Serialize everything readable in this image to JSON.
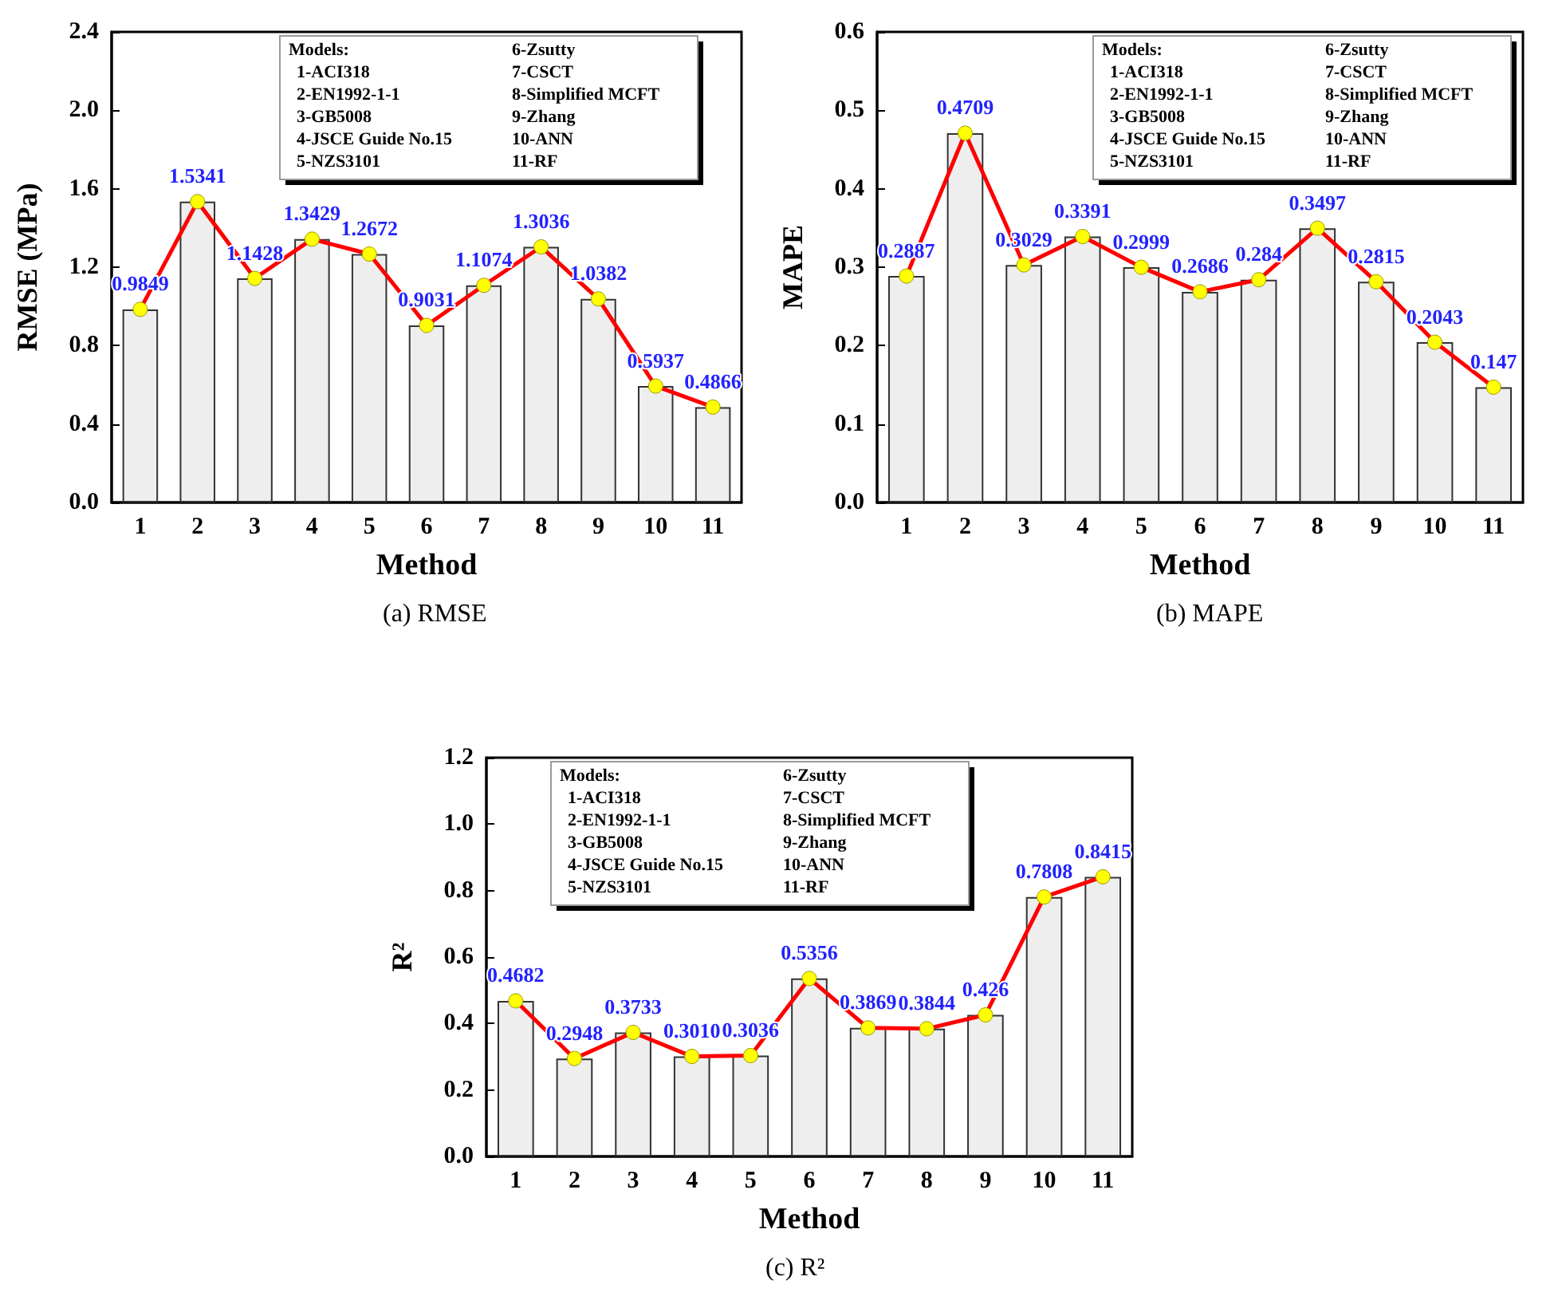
{
  "chart_data": [
    {
      "type": "bar",
      "title": "(a) RMSE",
      "xlabel": "Method",
      "ylabel": "RMSE (MPa)",
      "categories": [
        "1",
        "2",
        "3",
        "4",
        "5",
        "6",
        "7",
        "8",
        "9",
        "10",
        "11"
      ],
      "ylim": [
        0,
        2.4
      ],
      "yticks": [
        {
          "value": 0,
          "label": "0.0"
        },
        {
          "value": 0.4,
          "label": "0.4"
        },
        {
          "value": 0.8,
          "label": "0.8"
        },
        {
          "value": 1.2,
          "label": "1.2"
        },
        {
          "value": 1.6,
          "label": "1.6"
        },
        {
          "value": 2.0,
          "label": "2.0"
        },
        {
          "value": 2.4,
          "label": "2.4"
        }
      ],
      "marker": "circle",
      "annotations": [
        "Models:",
        "1-ACI318",
        "2-EN1992-1-1",
        "3-GB5008",
        "4-JSCE Guide No.15",
        "5-NZS3101",
        "6-Zsutty",
        "7-CSCT",
        "8-Simplified MCFT",
        "9-Zhang",
        "10-ANN",
        "11-RF"
      ],
      "series": [
        {
          "color": "#eeeeee",
          "values": [
            0.9849,
            1.5341,
            1.1428,
            1.3429,
            1.2672,
            0.9031,
            1.1074,
            1.3036,
            1.0382,
            0.5937,
            0.4866
          ]
        },
        {
          "type": "line",
          "color": "#ff0000",
          "values": [
            0.9849,
            1.5341,
            1.1428,
            1.3429,
            1.2672,
            0.9031,
            1.1074,
            1.3036,
            1.0382,
            0.5937,
            0.4866
          ],
          "value_labels": [
            "0.9849",
            "1.5341",
            "1.1428",
            "1.3429",
            "1.2672",
            "0.9031",
            "1.1074",
            "1.3036",
            "1.0382",
            "0.5937",
            "0.4866"
          ]
        }
      ]
    },
    {
      "type": "bar",
      "title": "(b) MAPE",
      "xlabel": "Method",
      "ylabel": "MAPE",
      "categories": [
        "1",
        "2",
        "3",
        "4",
        "5",
        "6",
        "7",
        "8",
        "9",
        "10",
        "11"
      ],
      "ylim": [
        0,
        0.6
      ],
      "yticks": [
        {
          "value": 0,
          "label": "0.0"
        },
        0.1,
        0.2,
        0.3,
        0.4,
        0.5,
        0.6
      ],
      "marker": "circle",
      "annotations": [
        "Models:",
        "1-ACI318",
        "2-EN1992-1-1",
        "3-GB5008",
        "4-JSCE Guide No.15",
        "5-NZS3101",
        "6-Zsutty",
        "7-CSCT",
        "8-Simplified MCFT",
        "9-Zhang",
        "10-ANN",
        "11-RF"
      ],
      "series": [
        {
          "color": "#eeeeee",
          "values": [
            0.2887,
            0.4709,
            0.3029,
            0.3391,
            0.2999,
            0.2686,
            0.284,
            0.3497,
            0.2815,
            0.2043,
            0.147
          ]
        },
        {
          "type": "line",
          "color": "#ff0000",
          "values": [
            0.2887,
            0.4709,
            0.3029,
            0.3391,
            0.2999,
            0.2686,
            0.284,
            0.3497,
            0.2815,
            0.2043,
            0.147
          ],
          "value_labels": [
            "0.2887",
            "0.4709",
            "0.3029",
            "0.3391",
            "0.2999",
            "0.2686",
            "0.284",
            "0.3497",
            "0.2815",
            "0.2043",
            "0.147"
          ]
        }
      ]
    },
    {
      "type": "bar",
      "title": "(c) R²",
      "xlabel": "Method",
      "ylabel": "R²",
      "categories": [
        "1",
        "2",
        "3",
        "4",
        "5",
        "6",
        "7",
        "8",
        "9",
        "10",
        "11"
      ],
      "ylim": [
        0,
        1.2
      ],
      "yticks": [
        {
          "value": 0,
          "label": "0.0"
        },
        0.2,
        0.4,
        0.6,
        0.8,
        {
          "value": 1.0,
          "label": "1.0"
        },
        1.2
      ],
      "marker": "circle",
      "annotations": [
        "Models:",
        "1-ACI318",
        "2-EN1992-1-1",
        "3-GB5008",
        "4-JSCE Guide No.15",
        "5-NZS3101",
        "6-Zsutty",
        "7-CSCT",
        "8-Simplified MCFT",
        "9-Zhang",
        "10-ANN",
        "11-RF"
      ],
      "series": [
        {
          "color": "#eeeeee",
          "values": [
            0.4682,
            0.2948,
            0.3733,
            0.301,
            0.3036,
            0.5356,
            0.3869,
            0.3844,
            0.426,
            0.7808,
            0.8415
          ]
        },
        {
          "type": "line",
          "color": "#ff0000",
          "values": [
            0.4682,
            0.2948,
            0.3733,
            0.301,
            0.3036,
            0.5356,
            0.3869,
            0.3844,
            0.426,
            0.7808,
            0.8415
          ],
          "value_labels": [
            "0.4682",
            "0.2948",
            "0.3733",
            "0.3010",
            "0.3036",
            "0.5356",
            "0.3869",
            "0.3844",
            "0.426",
            "0.7808",
            "0.8415"
          ]
        }
      ]
    }
  ]
}
